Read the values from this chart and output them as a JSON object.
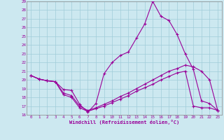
{
  "xlabel": "Windchill (Refroidissement éolien,°C)",
  "bg_color": "#cce8f0",
  "grid_color": "#a0ccd8",
  "line_color": "#990099",
  "xlim": [
    -0.5,
    23.5
  ],
  "ylim": [
    16,
    29
  ],
  "xticks": [
    0,
    1,
    2,
    3,
    4,
    5,
    6,
    7,
    8,
    9,
    10,
    11,
    12,
    13,
    14,
    15,
    16,
    17,
    18,
    19,
    20,
    21,
    22,
    23
  ],
  "yticks": [
    16,
    17,
    18,
    19,
    20,
    21,
    22,
    23,
    24,
    25,
    26,
    27,
    28,
    29
  ],
  "line1_x": [
    0,
    1,
    2,
    3,
    4,
    5,
    6,
    7,
    8,
    9,
    10,
    11,
    12,
    13,
    14,
    15,
    16,
    17,
    18,
    19,
    20,
    21,
    22,
    23
  ],
  "line1_y": [
    20.5,
    20.1,
    19.9,
    19.8,
    18.9,
    18.8,
    17.2,
    16.3,
    17.3,
    20.7,
    22.0,
    22.8,
    23.2,
    24.8,
    26.4,
    29.0,
    27.3,
    26.8,
    25.2,
    23.0,
    21.2,
    17.6,
    17.3,
    16.5
  ],
  "line2_x": [
    0,
    1,
    2,
    3,
    4,
    5,
    6,
    7,
    8,
    9,
    10,
    11,
    12,
    13,
    14,
    15,
    16,
    17,
    18,
    19,
    20,
    21,
    22,
    23
  ],
  "line2_y": [
    20.5,
    20.1,
    19.9,
    19.8,
    18.5,
    18.2,
    17.0,
    16.5,
    16.8,
    17.2,
    17.6,
    18.1,
    18.5,
    19.0,
    19.5,
    20.0,
    20.5,
    21.0,
    21.3,
    21.7,
    21.5,
    21.0,
    20.0,
    16.5
  ],
  "line3_x": [
    0,
    1,
    2,
    3,
    4,
    5,
    6,
    7,
    8,
    9,
    10,
    11,
    12,
    13,
    14,
    15,
    16,
    17,
    18,
    19,
    20,
    21,
    22,
    23
  ],
  "line3_y": [
    20.5,
    20.1,
    19.9,
    19.8,
    18.3,
    18.0,
    16.8,
    16.4,
    16.7,
    17.0,
    17.4,
    17.8,
    18.2,
    18.7,
    19.1,
    19.5,
    20.0,
    20.4,
    20.8,
    21.0,
    17.0,
    16.8,
    16.8,
    16.5
  ]
}
